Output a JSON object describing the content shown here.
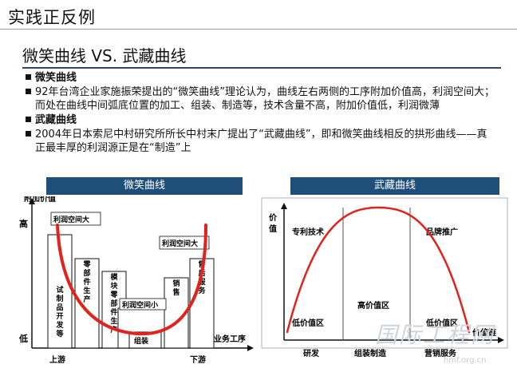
{
  "page": {
    "title": "实践正反例",
    "heading": "微笑曲线 VS. 武藏曲线"
  },
  "bullets": [
    {
      "text": "微笑曲线",
      "bold": true
    },
    {
      "text": "92年台湾企业家施振荣提出的“微笑曲线”理论认为，曲线左右两侧的工序附加价值高，利润空间大；而处在曲线中间弧底位置的加工、组装、制造等，技术含量不高，附加价值低，利润微薄",
      "bold": false
    },
    {
      "text": "武藏曲线",
      "bold": true
    },
    {
      "text": "2004年日本索尼中村研究所所长中村末广提出了“武藏曲线”，即和微笑曲线相反的拱形曲线——真正最丰厚的利润源正是在“制造”上",
      "bold": false
    }
  ],
  "smile": {
    "header": "微笑曲线",
    "y_axis": "附加价值",
    "high": "高",
    "low": "低",
    "x_axis": "业务工序",
    "upstream": "上游",
    "downstream": "下游",
    "bars": [
      {
        "label": "试制品开发等",
        "callout": "利润空间大",
        "level": 0.75
      },
      {
        "label": "零部件生产",
        "callout": "",
        "level": 0.55
      },
      {
        "label": "模块零部件生产",
        "callout": "",
        "level": 0.45
      },
      {
        "label": "",
        "callout": "利润空间小",
        "level": 0.12
      },
      {
        "label": "组装",
        "callout": "",
        "level": 0.08
      },
      {
        "label": "销售",
        "callout": "",
        "level": 0.3
      },
      {
        "label": "售后服务",
        "callout": "利润空间大",
        "level": 0.55
      }
    ]
  },
  "musashi": {
    "header": "武藏曲线",
    "y_axis": "价值",
    "x_axis": "价值链",
    "zones": [
      "专利技术",
      "高价值区",
      "品牌推广"
    ],
    "low_zones": [
      "低价值区",
      "低价值区"
    ],
    "stages": [
      "研发",
      "组装制造",
      "营销服务"
    ]
  },
  "colors": {
    "accent": "#1f4e79",
    "curve": "#e0241b"
  },
  "watermark": {
    "logo": "国际工程网",
    "url": "hmf.org.cn"
  }
}
